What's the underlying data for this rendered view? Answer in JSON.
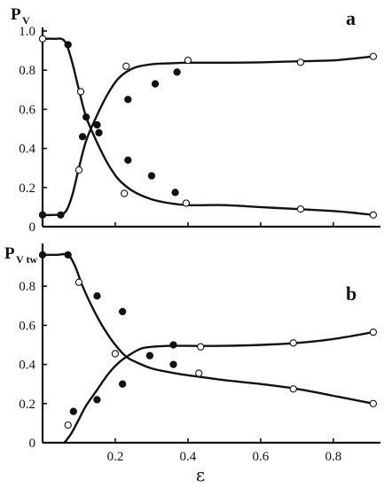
{
  "chart_data": [
    {
      "type": "scatter",
      "panel_label": "a",
      "ylabel": "P",
      "ylabel_sub": "V",
      "xlabel": "",
      "xlim": [
        0,
        0.92
      ],
      "ylim": [
        0,
        1.0
      ],
      "yticks": [
        "0",
        "0.2",
        "0.4",
        "0.6",
        "0.8",
        "1.0"
      ],
      "series": [
        {
          "marker": "filled",
          "points": [
            [
              0.0,
              0.06
            ],
            [
              0.05,
              0.06
            ],
            [
              0.07,
              0.93
            ],
            [
              0.11,
              0.46
            ],
            [
              0.12,
              0.56
            ],
            [
              0.15,
              0.52
            ],
            [
              0.155,
              0.48
            ],
            [
              0.235,
              0.65
            ],
            [
              0.235,
              0.34
            ],
            [
              0.3,
              0.26
            ],
            [
              0.31,
              0.73
            ],
            [
              0.365,
              0.175
            ],
            [
              0.37,
              0.79
            ]
          ]
        },
        {
          "marker": "open",
          "points": [
            [
              0.0,
              0.96
            ],
            [
              0.1,
              0.29
            ],
            [
              0.105,
              0.69
            ],
            [
              0.225,
              0.17
            ],
            [
              0.23,
              0.82
            ],
            [
              0.395,
              0.12
            ],
            [
              0.4,
              0.85
            ],
            [
              0.71,
              0.09
            ],
            [
              0.71,
              0.84
            ],
            [
              0.91,
              0.06
            ],
            [
              0.91,
              0.87
            ]
          ]
        },
        {
          "curve": "decreasing",
          "x": [
            0.0,
            0.03,
            0.06,
            0.08,
            0.1,
            0.12,
            0.15,
            0.18,
            0.21,
            0.25,
            0.3,
            0.35,
            0.4,
            0.5,
            0.6,
            0.7,
            0.8,
            0.86,
            0.91
          ],
          "y": [
            0.96,
            0.96,
            0.95,
            0.85,
            0.7,
            0.56,
            0.43,
            0.32,
            0.24,
            0.18,
            0.14,
            0.12,
            0.11,
            0.11,
            0.1,
            0.09,
            0.08,
            0.07,
            0.06
          ]
        },
        {
          "curve": "increasing",
          "x": [
            0.0,
            0.03,
            0.06,
            0.08,
            0.1,
            0.12,
            0.15,
            0.18,
            0.21,
            0.25,
            0.3,
            0.35,
            0.4,
            0.5,
            0.6,
            0.7,
            0.8,
            0.86,
            0.91
          ],
          "y": [
            0.06,
            0.06,
            0.07,
            0.15,
            0.3,
            0.44,
            0.57,
            0.68,
            0.76,
            0.81,
            0.83,
            0.835,
            0.838,
            0.838,
            0.84,
            0.845,
            0.85,
            0.86,
            0.87
          ]
        }
      ]
    },
    {
      "type": "scatter",
      "panel_label": "b",
      "ylabel": "P",
      "ylabel_sub": "V tw",
      "xlabel": "ε",
      "xlim": [
        0,
        0.92
      ],
      "ylim": [
        0,
        1.0
      ],
      "yticks": [
        "0",
        "0.2",
        "0.4",
        "0.6",
        "0.8"
      ],
      "xticks": [
        "0.2",
        "0.4",
        "0.6",
        "0.8"
      ],
      "series": [
        {
          "marker": "filled",
          "points": [
            [
              0.0,
              0.96
            ],
            [
              0.07,
              0.96
            ],
            [
              0.085,
              0.16
            ],
            [
              0.15,
              0.75
            ],
            [
              0.15,
              0.22
            ],
            [
              0.22,
              0.67
            ],
            [
              0.22,
              0.3
            ],
            [
              0.295,
              0.445
            ],
            [
              0.36,
              0.4
            ],
            [
              0.36,
              0.5
            ]
          ]
        },
        {
          "marker": "open",
          "points": [
            [
              0.07,
              0.09
            ],
            [
              0.1,
              0.82
            ],
            [
              0.2,
              0.455
            ],
            [
              0.43,
              0.355
            ],
            [
              0.435,
              0.49
            ],
            [
              0.69,
              0.275
            ],
            [
              0.69,
              0.51
            ],
            [
              0.91,
              0.2
            ],
            [
              0.91,
              0.565
            ]
          ]
        },
        {
          "curve": "decreasing",
          "x": [
            0.0,
            0.04,
            0.07,
            0.09,
            0.11,
            0.14,
            0.17,
            0.2,
            0.23,
            0.26,
            0.3,
            0.35,
            0.4,
            0.5,
            0.6,
            0.7,
            0.8,
            0.91
          ],
          "y": [
            0.96,
            0.96,
            0.96,
            0.9,
            0.8,
            0.68,
            0.58,
            0.5,
            0.44,
            0.41,
            0.38,
            0.36,
            0.345,
            0.32,
            0.3,
            0.275,
            0.24,
            0.2
          ]
        },
        {
          "curve": "increasing",
          "x": [
            0.06,
            0.08,
            0.1,
            0.12,
            0.15,
            0.18,
            0.21,
            0.24,
            0.27,
            0.3,
            0.35,
            0.4,
            0.5,
            0.6,
            0.7,
            0.8,
            0.91
          ],
          "y": [
            0.0,
            0.05,
            0.12,
            0.19,
            0.27,
            0.35,
            0.41,
            0.45,
            0.48,
            0.49,
            0.495,
            0.495,
            0.495,
            0.5,
            0.51,
            0.53,
            0.565
          ]
        }
      ]
    }
  ]
}
